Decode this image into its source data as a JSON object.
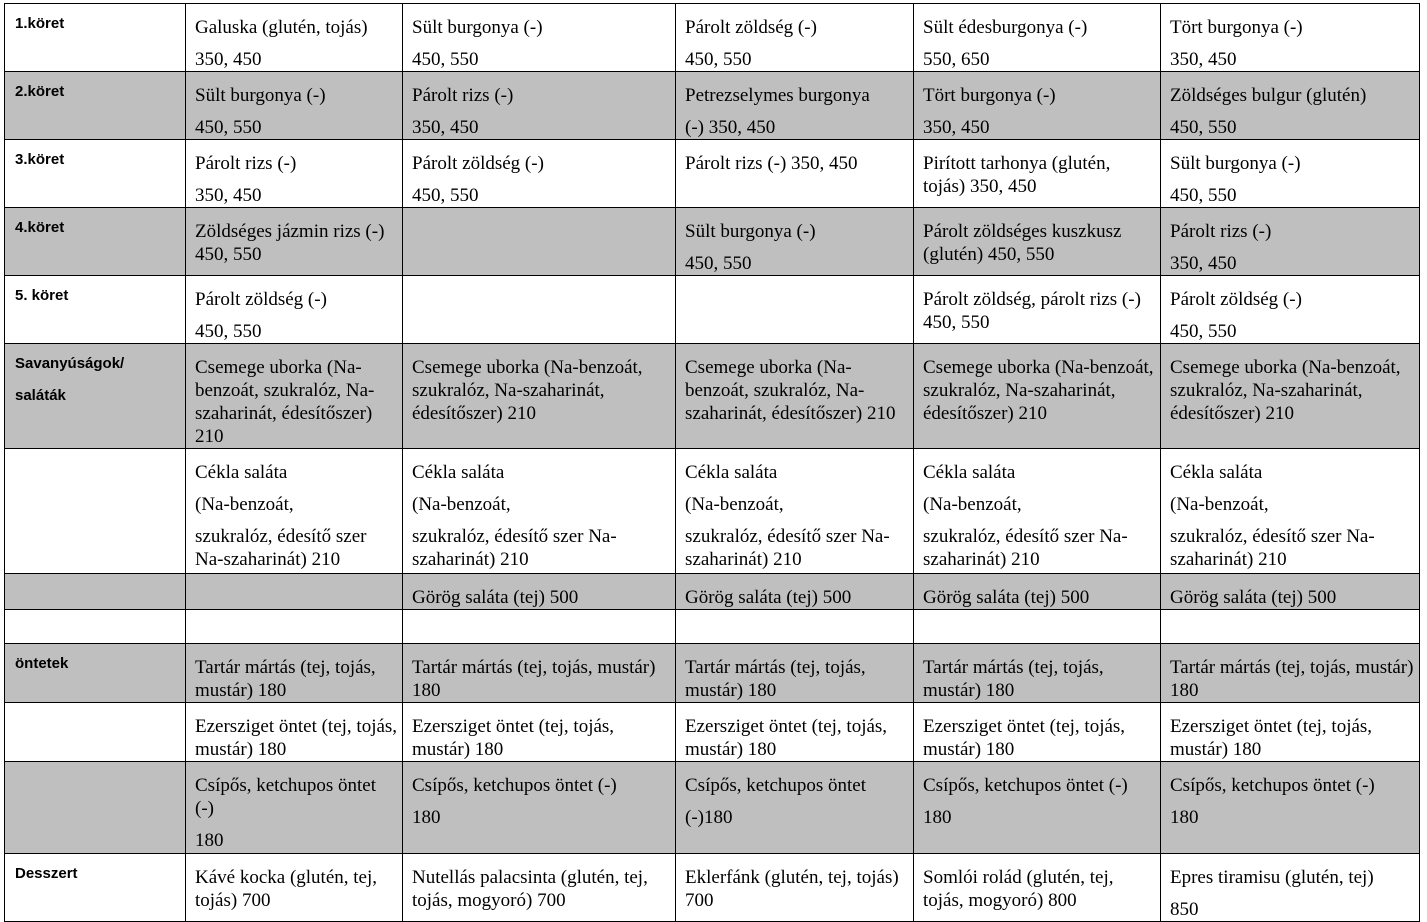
{
  "rows": [
    {
      "label": "1.köret",
      "shaded": false,
      "cells": [
        [
          "Galuska (glutén, tojás)",
          "350, 450"
        ],
        [
          "Sült burgonya (-)",
          "450, 550"
        ],
        [
          "Párolt zöldség (-)",
          "450, 550"
        ],
        [
          "Sült édesburgonya (-)",
          "550, 650"
        ],
        [
          "Tört burgonya (-)",
          "350, 450"
        ]
      ]
    },
    {
      "label": "2.köret",
      "shaded": true,
      "cells": [
        [
          "Sült burgonya (-)",
          "450, 550"
        ],
        [
          "Párolt rizs (-)",
          "350, 450"
        ],
        [
          "Petrezselymes burgonya",
          "(-) 350, 450"
        ],
        [
          "Tört burgonya (-)",
          "350, 450"
        ],
        [
          "Zöldséges bulgur (glutén)",
          "450, 550"
        ]
      ]
    },
    {
      "label": "3.köret",
      "shaded": false,
      "cells": [
        [
          "Párolt rizs (-)",
          "350, 450"
        ],
        [
          "Párolt zöldség (-)",
          "450, 550"
        ],
        [
          "Párolt rizs (-) 350, 450"
        ],
        [
          "Pirított tarhonya (glutén, tojás) 350, 450"
        ],
        [
          "Sült burgonya (-)",
          "450, 550"
        ]
      ]
    },
    {
      "label": "4.köret",
      "shaded": true,
      "cells": [
        [
          "Zöldséges jázmin rizs (-) 450, 550"
        ],
        [],
        [
          "Sült burgonya (-)",
          "450, 550"
        ],
        [
          "Párolt zöldséges kuszkusz (glutén) 450, 550"
        ],
        [
          "Párolt rizs (-)",
          "350, 450"
        ]
      ]
    },
    {
      "label": "5. köret",
      "shaded": false,
      "cells": [
        [
          "Párolt zöldség (-)",
          "450, 550"
        ],
        [],
        [],
        [
          "Párolt zöldség, párolt rizs (-) 450, 550"
        ],
        [
          "Párolt zöldség (-)",
          "450, 550"
        ]
      ]
    },
    {
      "label": "Savanyúságok/\nsaláták",
      "shaded": true,
      "cells": [
        [
          "Csemege uborka (Na-benzoát, szukralóz, Na-szaharinát, édesítőszer) 210"
        ],
        [
          "Csemege uborka (Na-benzoát, szukralóz, Na-szaharinát, édesítőszer) 210"
        ],
        [
          "Csemege uborka (Na-benzoát, szukralóz, Na-szaharinát, édesítőszer) 210"
        ],
        [
          "Csemege uborka (Na-benzoát, szukralóz, Na-szaharinát, édesítőszer) 210"
        ],
        [
          "Csemege uborka (Na-benzoát, szukralóz, Na-szaharinát, édesítőszer) 210"
        ]
      ]
    },
    {
      "label": "",
      "shaded": false,
      "cells": [
        [
          "Cékla saláta",
          "(Na-benzoát,",
          "szukralóz, édesítő szer Na-szaharinát) 210"
        ],
        [
          "Cékla saláta",
          "(Na-benzoát,",
          "szukralóz, édesítő szer Na-szaharinát) 210"
        ],
        [
          "Cékla saláta",
          "(Na-benzoát,",
          "szukralóz, édesítő szer Na-szaharinát) 210"
        ],
        [
          "Cékla saláta",
          "(Na-benzoát,",
          "szukralóz, édesítő szer Na-szaharinát) 210"
        ],
        [
          "Cékla saláta",
          "(Na-benzoát,",
          "szukralóz, édesítő szer Na-szaharinát) 210"
        ]
      ]
    },
    {
      "label": "",
      "shaded": true,
      "cells": [
        [],
        [
          "Görög saláta (tej) 500"
        ],
        [
          "Görög saláta (tej) 500"
        ],
        [
          "Görög saláta (tej) 500"
        ],
        [
          "Görög saláta (tej) 500"
        ]
      ]
    },
    {
      "label": "",
      "shaded": false,
      "cells": [
        [],
        [],
        [],
        [],
        []
      ]
    },
    {
      "label": "öntetek",
      "shaded": true,
      "cells": [
        [
          "Tartár mártás (tej, tojás, mustár) 180"
        ],
        [
          "Tartár mártás (tej, tojás, mustár) 180"
        ],
        [
          "Tartár mártás (tej, tojás, mustár) 180"
        ],
        [
          "Tartár mártás (tej, tojás, mustár) 180"
        ],
        [
          "Tartár mártás (tej, tojás, mustár) 180"
        ]
      ]
    },
    {
      "label": "",
      "shaded": false,
      "cells": [
        [
          "Ezersziget öntet (tej, tojás, mustár) 180"
        ],
        [
          "Ezersziget öntet (tej, tojás, mustár) 180"
        ],
        [
          "Ezersziget öntet (tej, tojás, mustár) 180"
        ],
        [
          "Ezersziget öntet (tej, tojás, mustár) 180"
        ],
        [
          "Ezersziget öntet (tej, tojás, mustár) 180"
        ]
      ]
    },
    {
      "label": "",
      "shaded": true,
      "cells": [
        [
          "Csípős, ketchupos öntet (-)",
          "180"
        ],
        [
          "Csípős, ketchupos öntet (-)",
          "180"
        ],
        [
          "Csípős, ketchupos öntet",
          "(-)180"
        ],
        [
          "Csípős, ketchupos öntet (-)",
          "180"
        ],
        [
          "Csípős, ketchupos öntet (-)",
          "180"
        ]
      ]
    },
    {
      "label": "Desszert",
      "shaded": false,
      "cells": [
        [
          "Kávé kocka (glutén, tej, tojás) 700"
        ],
        [
          "Nutellás palacsinta (glutén, tej, tojás, mogyoró) 700"
        ],
        [
          "Eklerfánk (glutén, tej, tojás) 700"
        ],
        [
          "Somlói rolád (glutén, tej, tojás, mogyoró) 800"
        ],
        [
          "Epres tiramisu (glutén, tej)",
          "850"
        ]
      ]
    }
  ]
}
